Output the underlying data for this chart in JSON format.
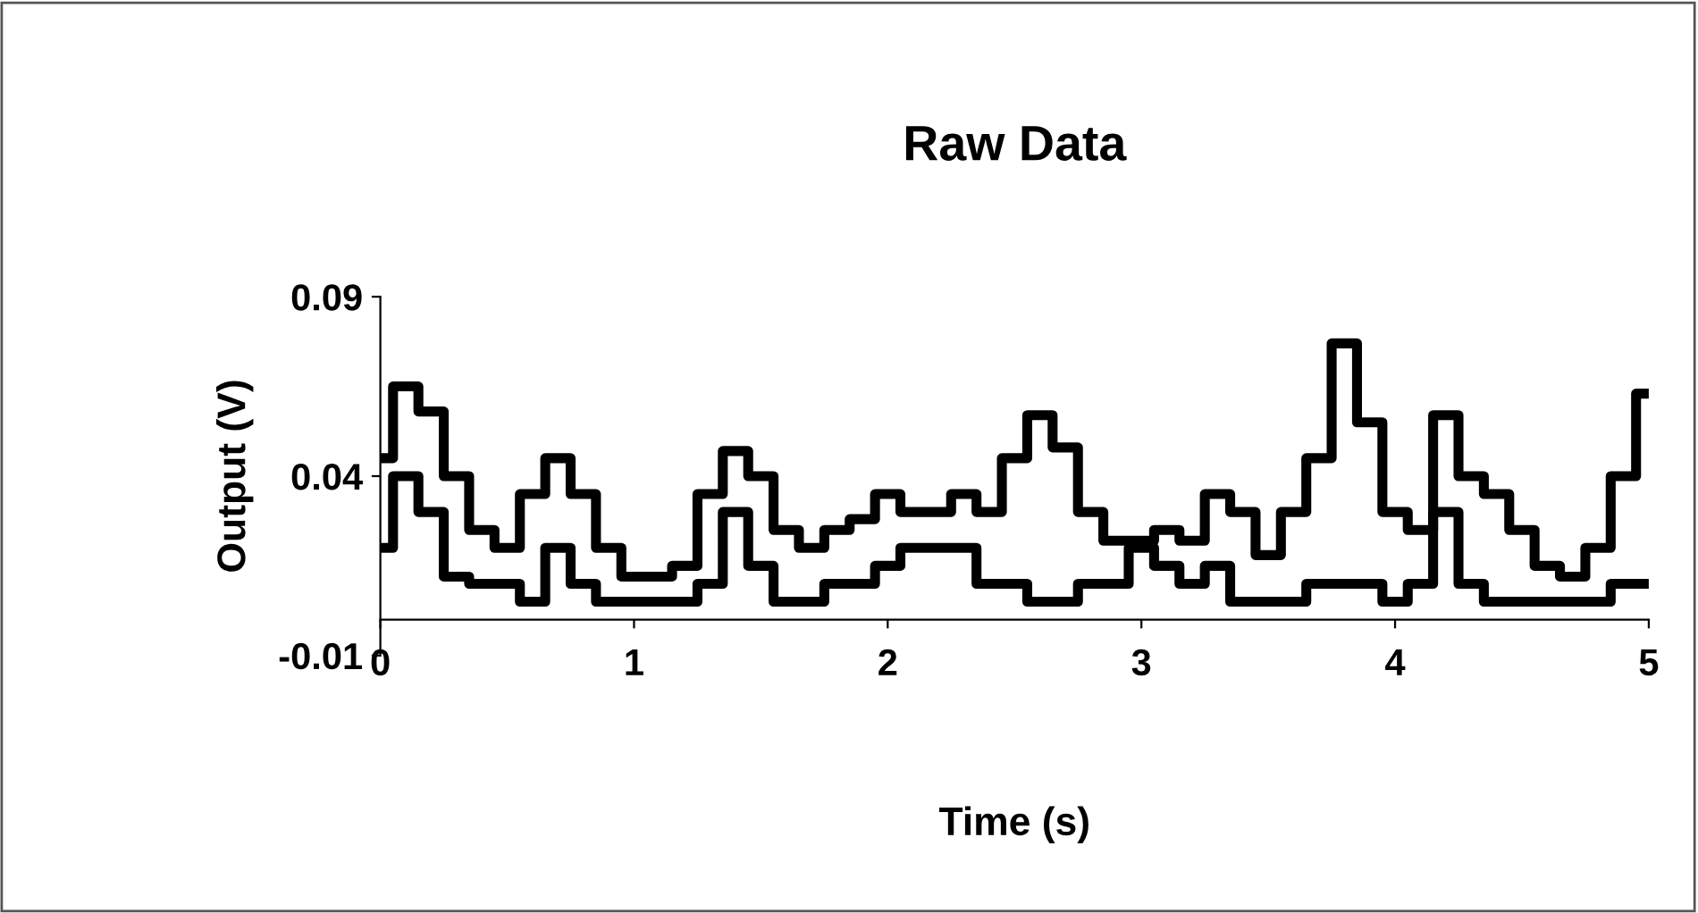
{
  "chart_data": {
    "type": "step",
    "title": "Raw Data",
    "xlabel": "Time (s)",
    "ylabel": "Output (V)",
    "x": [
      0,
      0.1,
      0.2,
      0.3,
      0.4,
      0.5,
      0.6,
      0.7,
      0.8,
      0.9,
      1.0,
      1.1,
      1.2,
      1.3,
      1.4,
      1.5,
      1.6,
      1.7,
      1.8,
      1.9,
      2.0,
      2.1,
      2.2,
      2.3,
      2.4,
      2.5,
      2.6,
      2.7,
      2.8,
      2.9,
      3.0,
      3.1,
      3.2,
      3.3,
      3.4,
      3.5,
      3.6,
      3.7,
      3.8,
      3.9,
      4.0,
      4.1,
      4.2,
      4.3,
      4.4,
      4.5,
      4.6,
      4.7,
      4.8,
      4.9,
      5.0
    ],
    "series": [
      {
        "color": "#000000",
        "values": [
          0.045,
          0.065,
          0.058,
          0.04,
          0.025,
          0.02,
          0.035,
          0.045,
          0.035,
          0.02,
          0.012,
          0.012,
          0.015,
          0.035,
          0.047,
          0.04,
          0.025,
          0.02,
          0.025,
          0.028,
          0.035,
          0.03,
          0.03,
          0.035,
          0.03,
          0.045,
          0.057,
          0.048,
          0.03,
          0.022,
          0.022,
          0.025,
          0.022,
          0.035,
          0.03,
          0.018,
          0.03,
          0.045,
          0.077,
          0.055,
          0.03,
          0.025,
          0.057,
          0.04,
          0.035,
          0.025,
          0.015,
          0.012,
          0.02,
          0.04,
          0.063
        ]
      },
      {
        "color": "#000000",
        "values": [
          0.02,
          0.04,
          0.03,
          0.012,
          0.01,
          0.01,
          0.005,
          0.02,
          0.01,
          0.005,
          0.005,
          0.005,
          0.005,
          0.01,
          0.03,
          0.015,
          0.005,
          0.005,
          0.01,
          0.01,
          0.015,
          0.02,
          0.02,
          0.02,
          0.01,
          0.01,
          0.005,
          0.005,
          0.01,
          0.01,
          0.02,
          0.015,
          0.01,
          0.015,
          0.005,
          0.005,
          0.005,
          0.01,
          0.01,
          0.01,
          0.005,
          0.01,
          0.03,
          0.01,
          0.005,
          0.005,
          0.005,
          0.005,
          0.005,
          0.01,
          0.01
        ]
      }
    ],
    "xlim": [
      0,
      5
    ],
    "xticks": [
      0,
      1,
      2,
      3,
      4,
      5
    ],
    "ylim": [
      -0.01,
      0.09
    ],
    "yticks": [
      -0.01,
      0.04,
      0.09
    ],
    "grid": false,
    "legend": false
  }
}
